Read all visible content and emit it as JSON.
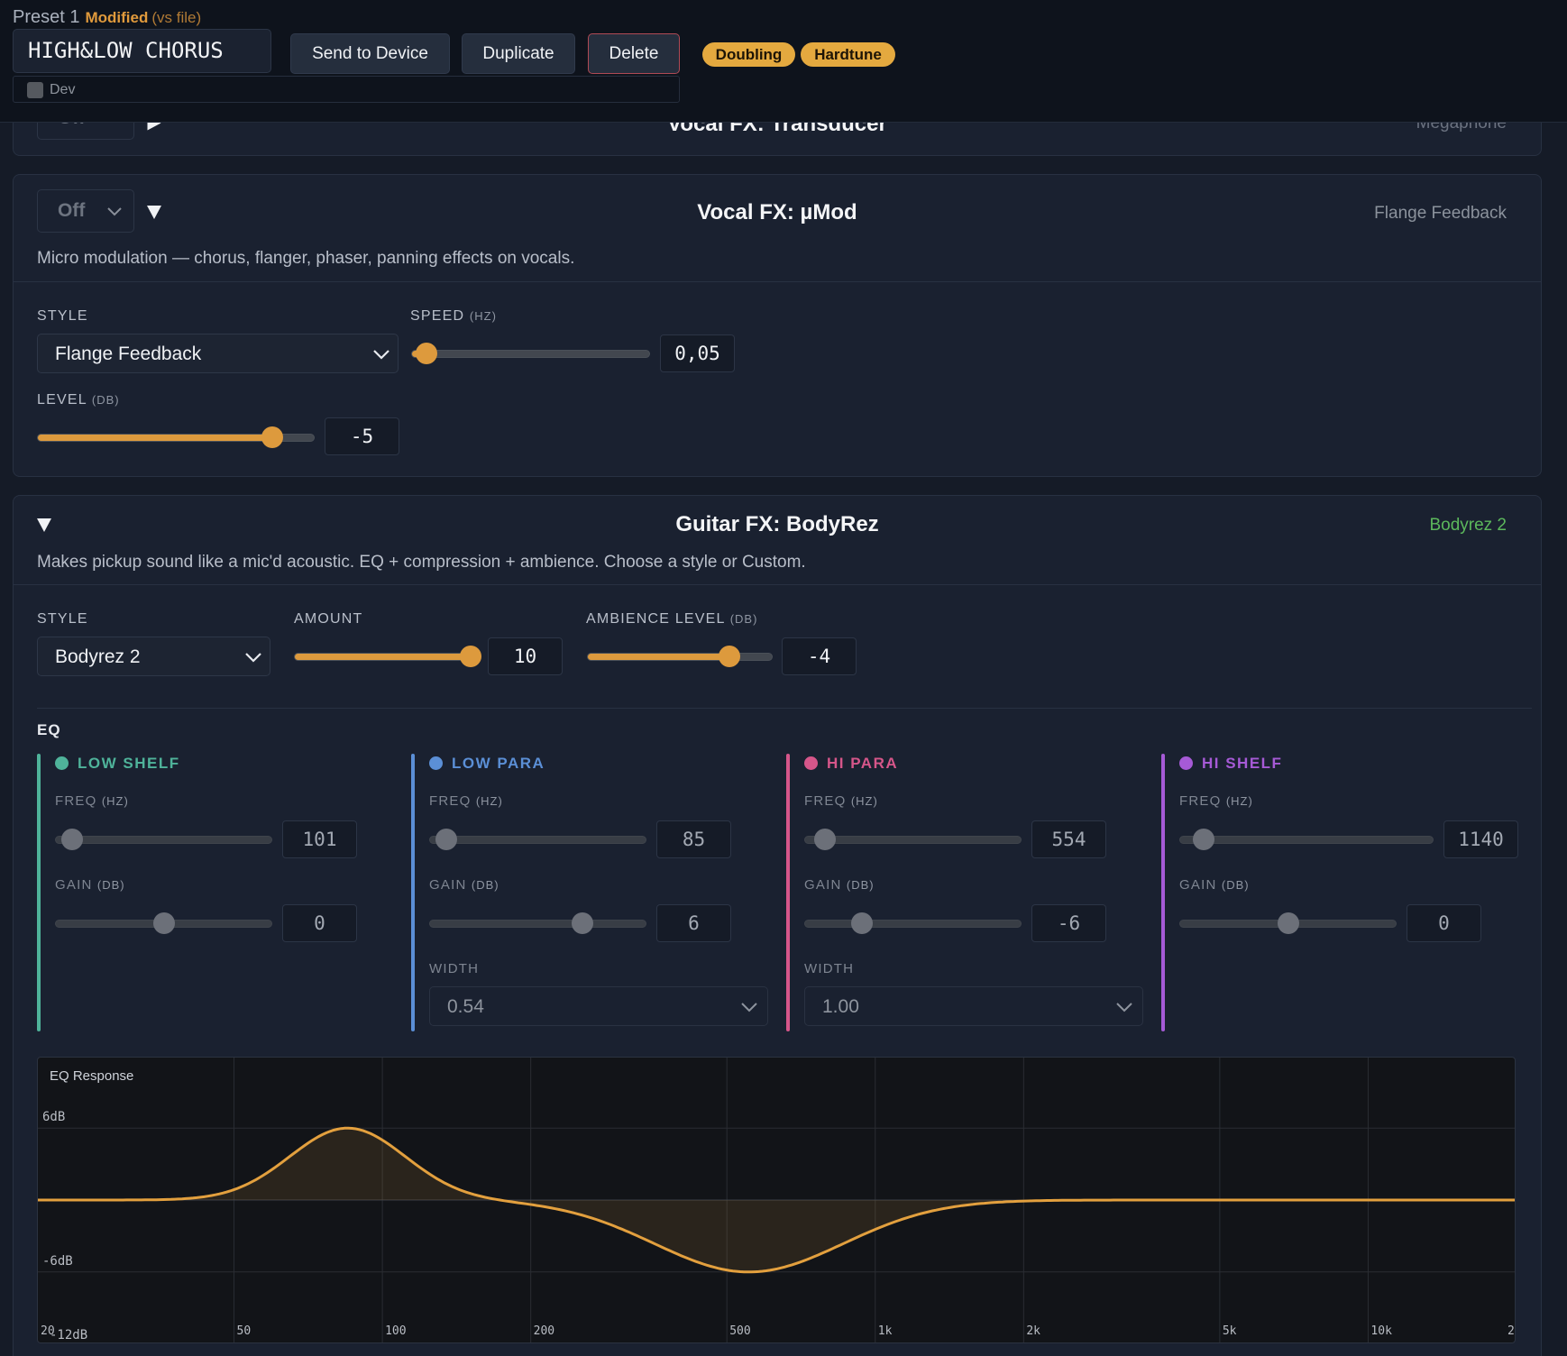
{
  "header": {
    "preset_label": "Preset 1",
    "modified": "Modified",
    "vs_file": "(vs file)",
    "preset_name": "HIGH&LOW CHORUS",
    "dev_label": "Dev",
    "buttons": {
      "send": "Send to Device",
      "duplicate": "Duplicate",
      "delete": "Delete"
    },
    "tags": [
      "Doubling",
      "Hardtune"
    ]
  },
  "transducer": {
    "title": "Vocal FX: Transducer",
    "state": "Off",
    "style": "Megaphone"
  },
  "umod": {
    "state": "Off",
    "title": "Vocal FX: µMod",
    "style_badge": "Flange Feedback",
    "description": "Micro modulation — chorus, flanger, phaser, panning effects on vocals.",
    "style_label": "STYLE",
    "style_value": "Flange Feedback",
    "speed_label": "SPEED",
    "speed_unit": "(HZ)",
    "speed_value": "0,05",
    "speed_fraction": 0.02,
    "level_label": "LEVEL",
    "level_unit": "(DB)",
    "level_value": "-5",
    "level_fraction": 0.875
  },
  "bodyrez": {
    "title": "Guitar FX: BodyRez",
    "style_badge": "Bodyrez 2",
    "description": "Makes pickup sound like a mic'd acoustic. EQ + compression + ambience. Choose a style or Custom.",
    "style_label": "STYLE",
    "style_value": "Bodyrez 2",
    "amount_label": "AMOUNT",
    "amount_value": "10",
    "amount_fraction": 1.0,
    "ambience_label": "AMBIENCE LEVEL",
    "ambience_unit": "(DB)",
    "ambience_value": "-4",
    "ambience_fraction": 0.8
  },
  "eq": {
    "title": "EQ",
    "freq_label": "FREQ",
    "gain_label": "GAIN",
    "width_label": "WIDTH",
    "hz_unit": "(HZ)",
    "db_unit": "(DB)",
    "bands": [
      {
        "name": "LOW SHELF",
        "color": "#4fb39a",
        "freq": "101",
        "freq_fraction": 0.03,
        "gain": "0",
        "gain_fraction": 0.5
      },
      {
        "name": "LOW PARA",
        "color": "#5b8fd6",
        "freq": "85",
        "freq_fraction": 0.03,
        "gain": "6",
        "gain_fraction": 0.73,
        "width": "0.54"
      },
      {
        "name": "HI PARA",
        "color": "#d6568a",
        "freq": "554",
        "freq_fraction": 0.05,
        "gain": "-6",
        "gain_fraction": 0.24,
        "width": "1.00"
      },
      {
        "name": "HI SHELF",
        "color": "#a65ad6",
        "freq": "1140",
        "freq_fraction": 0.06,
        "gain": "0",
        "gain_fraction": 0.5
      }
    ]
  },
  "graph": {
    "title": "EQ Response",
    "db_labels": [
      "6dB",
      "-6dB",
      "-12dB"
    ],
    "freq_labels": [
      "20",
      "50",
      "100",
      "200",
      "500",
      "1k",
      "2k",
      "5k",
      "10k",
      "2"
    ],
    "db_range": [
      -12,
      12
    ],
    "freq_range": [
      20,
      20000
    ]
  }
}
